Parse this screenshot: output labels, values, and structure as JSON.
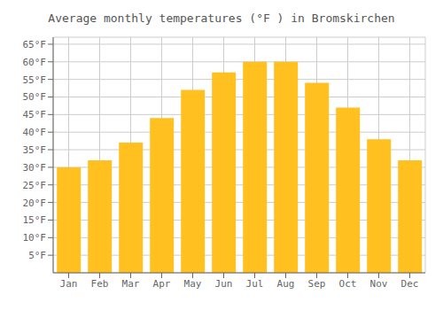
{
  "chart_data": {
    "type": "bar",
    "title": "Average monthly temperatures (°F ) in Bromskirchen",
    "categories": [
      "Jan",
      "Feb",
      "Mar",
      "Apr",
      "May",
      "Jun",
      "Jul",
      "Aug",
      "Sep",
      "Oct",
      "Nov",
      "Dec"
    ],
    "values": [
      30,
      32,
      37,
      44,
      52,
      57,
      60,
      60,
      54,
      47,
      38,
      32
    ],
    "color": "#FFC020",
    "ylim": [
      0,
      67
    ],
    "yticks": [
      {
        "value": 5,
        "label": "5°F"
      },
      {
        "value": 10,
        "label": "10°F"
      },
      {
        "value": 15,
        "label": "15°F"
      },
      {
        "value": 20,
        "label": "20°F"
      },
      {
        "value": 25,
        "label": "25°F"
      },
      {
        "value": 30,
        "label": "30°F"
      },
      {
        "value": 35,
        "label": "35°F"
      },
      {
        "value": 40,
        "label": "40°F"
      },
      {
        "value": 45,
        "label": "45°F"
      },
      {
        "value": 50,
        "label": "50°F"
      },
      {
        "value": 55,
        "label": "55°F"
      },
      {
        "value": 60,
        "label": "60°F"
      },
      {
        "value": 65,
        "label": "65°F"
      }
    ],
    "grid": true
  }
}
